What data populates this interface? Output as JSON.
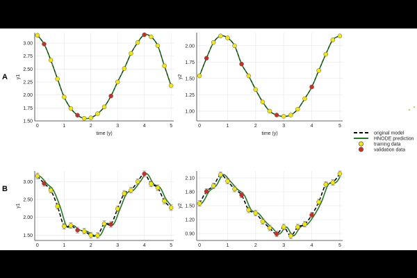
{
  "panel_labels": {
    "a": "A",
    "b": "B"
  },
  "legend": {
    "original": "original model",
    "hnode": "HNODE prediction",
    "training": "training data",
    "validation": "validation data"
  },
  "colors": {
    "original": "#000000",
    "hnode": "#1f7a1f",
    "training": "#f5e60a",
    "validation": "#d62a1e",
    "errorbar": "#888888"
  },
  "chart_data": [
    {
      "id": "A-y1",
      "type": "scatter",
      "xlabel": "time (y)",
      "ylabel": "y1",
      "xlim": [
        -0.1,
        5.1
      ],
      "ylim": [
        1.5,
        3.2
      ],
      "xticks": [
        0,
        1,
        2,
        3,
        4,
        5
      ],
      "xtick_labels": [
        "0",
        "1",
        "2",
        "3",
        "4",
        "5"
      ],
      "yticks": [
        1.5,
        1.75,
        2.0,
        2.25,
        2.5,
        2.75,
        3.0
      ],
      "ytick_labels": [
        "1.50",
        "1.75",
        "2.00",
        "2.25",
        "2.50",
        "2.75",
        "3.00"
      ],
      "curve": {
        "t": [
          0,
          0.1,
          0.2,
          0.3,
          0.4,
          0.5,
          0.6,
          0.7,
          0.8,
          0.9,
          1.0,
          1.1,
          1.2,
          1.3,
          1.4,
          1.5,
          1.6,
          1.7,
          1.8,
          1.9,
          2.0,
          2.1,
          2.2,
          2.3,
          2.4,
          2.5,
          2.6,
          2.7,
          2.8,
          2.9,
          3.0,
          3.1,
          3.2,
          3.3,
          3.4,
          3.5,
          3.6,
          3.7,
          3.8,
          3.9,
          4.0,
          4.1,
          4.2,
          4.3,
          4.4,
          4.5,
          4.6,
          4.7,
          4.8,
          4.9,
          5.0
        ],
        "y": [
          3.15,
          3.12,
          3.06,
          2.97,
          2.85,
          2.71,
          2.55,
          2.39,
          2.23,
          2.08,
          1.95,
          1.83,
          1.73,
          1.65,
          1.59,
          1.56,
          1.54,
          1.545,
          1.56,
          1.59,
          1.63,
          1.69,
          1.76,
          1.85,
          1.95,
          2.06,
          2.18,
          2.31,
          2.45,
          2.59,
          2.73,
          2.86,
          2.97,
          3.06,
          3.12,
          3.15,
          3.15,
          3.11,
          3.04,
          2.93,
          2.8,
          2.68,
          2.56,
          2.44,
          2.33,
          2.24,
          2.17,
          2.12,
          2.1,
          2.11,
          2.16
        ]
      },
      "curve_y": [
        3.15,
        3.12,
        3.06,
        2.97,
        2.85,
        2.71,
        2.55,
        2.39,
        2.23,
        2.08,
        1.95,
        1.83,
        1.73,
        1.65,
        1.59,
        1.56,
        1.54,
        1.545,
        1.56,
        1.59,
        1.63,
        1.69,
        1.76,
        1.85,
        1.95,
        2.06,
        2.18,
        2.31,
        2.45,
        2.59,
        2.73,
        2.86,
        2.97,
        3.06,
        3.12,
        3.15,
        3.15,
        3.11,
        3.04,
        2.93,
        2.8,
        2.68,
        2.56,
        2.44,
        2.33,
        2.24,
        2.17,
        2.12,
        2.1,
        2.11,
        2.16
      ],
      "training": {
        "x": [
          0,
          0.5,
          0.75,
          1.0,
          1.25,
          1.75,
          2.0,
          2.25,
          2.5,
          3.0,
          3.25,
          3.5,
          3.75,
          4.25,
          4.5,
          4.75,
          5.0
        ],
        "y": [
          3.15,
          2.67,
          2.31,
          1.96,
          1.74,
          1.55,
          1.56,
          1.64,
          1.77,
          2.25,
          2.51,
          2.8,
          3.01,
          3.12,
          2.95,
          2.56,
          2.18
        ]
      },
      "validation": {
        "x": [
          0.25,
          1.5,
          2.75,
          4.0
        ],
        "y": [
          2.98,
          1.61,
          1.98,
          3.16
        ]
      }
    },
    {
      "id": "A-y2",
      "type": "scatter",
      "xlabel": "time (y)",
      "ylabel": "y2",
      "xlim": [
        -0.1,
        5.1
      ],
      "ylim": [
        0.85,
        2.2
      ],
      "xticks": [
        0,
        1,
        2,
        3,
        4,
        5
      ],
      "xtick_labels": [
        "0",
        "1",
        "2",
        "3",
        "4",
        "5"
      ],
      "yticks": [
        1.0,
        1.25,
        1.5,
        1.75,
        2.0
      ],
      "ytick_labels": [
        "1.00",
        "1.25",
        "1.50",
        "1.75",
        "2.00"
      ],
      "training": {
        "x": [
          0,
          0.5,
          0.75,
          1.0,
          1.25,
          1.75,
          2.0,
          2.25,
          2.5,
          3.0,
          3.25,
          3.5,
          3.75,
          4.25,
          4.5,
          4.75,
          5.0
        ],
        "y": [
          1.54,
          2.05,
          2.15,
          2.12,
          2.0,
          1.54,
          1.33,
          1.14,
          1.0,
          0.92,
          0.94,
          1.03,
          1.19,
          1.62,
          1.87,
          2.09,
          2.15
        ]
      },
      "validation": {
        "x": [
          0.25,
          1.5,
          2.75,
          4.0
        ],
        "y": [
          1.81,
          1.72,
          0.94,
          1.37
        ]
      }
    },
    {
      "id": "B-y1",
      "type": "scatter",
      "xlabel": "time (y)",
      "ylabel": "y1",
      "xlim": [
        -0.1,
        5.1
      ],
      "ylim": [
        1.35,
        3.3
      ],
      "xticks": [
        0,
        1,
        2,
        3,
        4,
        5
      ],
      "xtick_labels": [
        "0",
        "1",
        "2",
        "3",
        "4",
        "5"
      ],
      "yticks": [
        1.5,
        2.0,
        2.5,
        3.0
      ],
      "ytick_labels": [
        "1.50",
        "2.00",
        "2.50",
        "3.00"
      ],
      "training": {
        "x": [
          0,
          0.5,
          0.75,
          1.0,
          1.25,
          1.75,
          2.0,
          2.25,
          2.5,
          3.0,
          3.25,
          3.5,
          3.75,
          4.25,
          4.5,
          4.75,
          5.0
        ],
        "y": [
          3.16,
          2.76,
          2.31,
          1.75,
          1.77,
          1.61,
          1.5,
          1.49,
          1.82,
          2.24,
          2.67,
          2.76,
          3.0,
          2.94,
          2.83,
          2.46,
          2.27
        ]
      },
      "training_err": 0.08,
      "validation": {
        "x": [
          0.25,
          1.5,
          2.75,
          4.0
        ],
        "y": [
          2.95,
          1.64,
          1.8,
          3.22
        ]
      }
    },
    {
      "id": "B-y2",
      "type": "scatter",
      "xlabel": "time (y)",
      "ylabel": "y2",
      "xlim": [
        -0.1,
        5.1
      ],
      "ylim": [
        0.75,
        2.25
      ],
      "xticks": [
        0,
        1,
        2,
        3,
        4,
        5
      ],
      "xtick_labels": [
        "0",
        "1",
        "2",
        "3",
        "4",
        "5"
      ],
      "yticks": [
        0.9,
        1.2,
        1.5,
        1.8,
        2.1
      ],
      "ytick_labels": [
        "0.90",
        "1.20",
        "1.50",
        "1.80",
        "2.10"
      ],
      "training": {
        "x": [
          0,
          0.5,
          0.75,
          1.0,
          1.25,
          1.75,
          2.0,
          2.25,
          2.5,
          3.0,
          3.25,
          3.5,
          3.75,
          4.25,
          4.5,
          4.75,
          5.0
        ],
        "y": [
          1.55,
          1.93,
          2.17,
          2.03,
          1.86,
          1.41,
          1.34,
          1.16,
          1.02,
          1.04,
          0.85,
          1.04,
          1.1,
          1.58,
          1.96,
          2.0,
          2.19
        ]
      },
      "training_err": 0.06,
      "validation": {
        "x": [
          0.25,
          1.5,
          2.75,
          4.0
        ],
        "y": [
          1.81,
          1.73,
          0.89,
          1.3
        ]
      }
    }
  ]
}
